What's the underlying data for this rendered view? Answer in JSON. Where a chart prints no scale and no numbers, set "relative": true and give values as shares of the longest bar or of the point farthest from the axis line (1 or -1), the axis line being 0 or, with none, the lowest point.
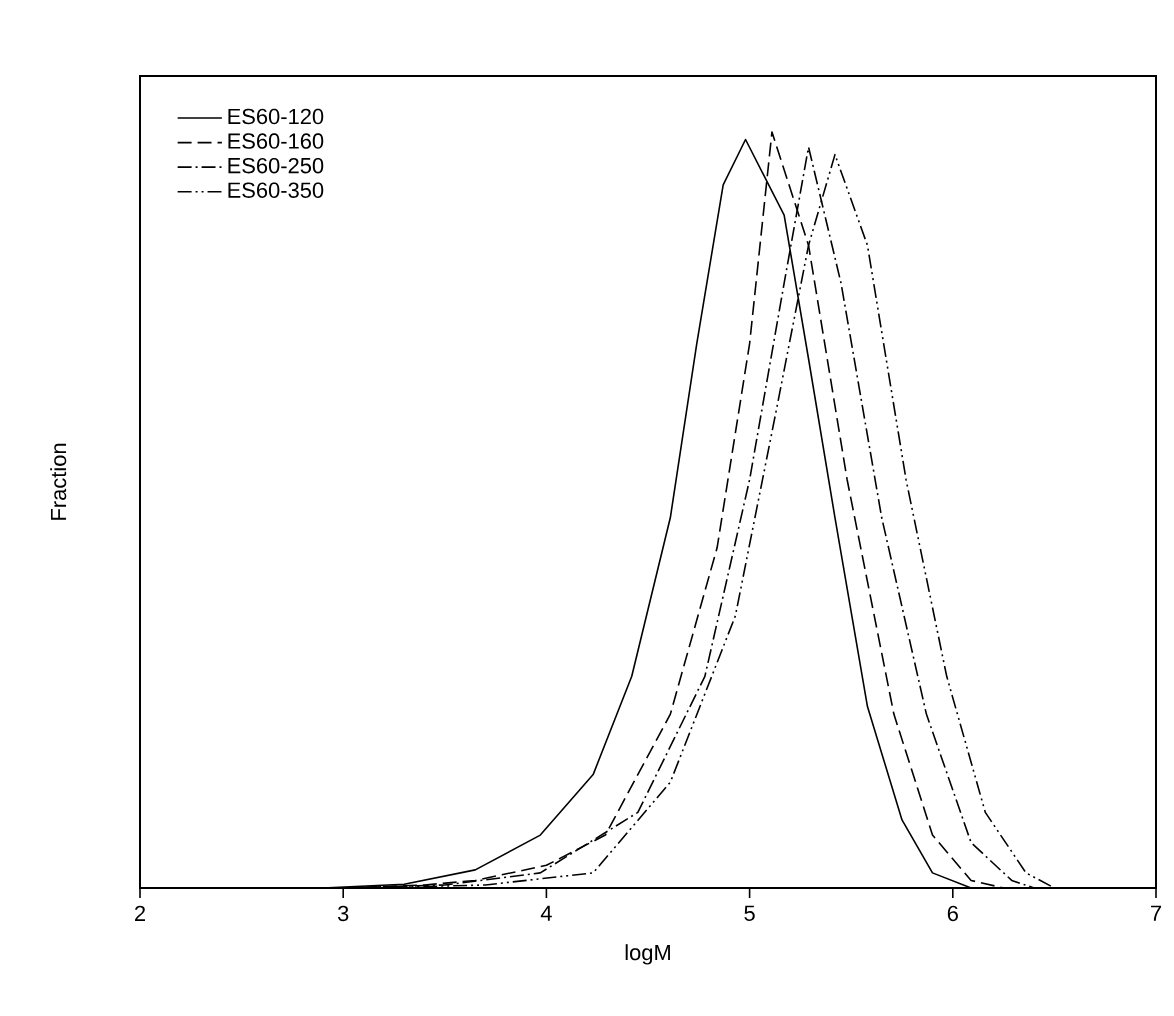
{
  "chart_data": {
    "type": "line",
    "xlabel": "logM",
    "ylabel": "Fraction",
    "relative": true,
    "xlim": [
      2,
      7
    ],
    "xticks": [
      2,
      3,
      4,
      5,
      6,
      7
    ],
    "legend": "top left",
    "grid": false,
    "marker": "none",
    "series": [
      {
        "name": "ES60-120",
        "color": "#000000",
        "line_style": "solid",
        "x": [
          2.9,
          3.3,
          3.65,
          3.97,
          4.23,
          4.42,
          4.61,
          4.74,
          4.87,
          4.98,
          5.17,
          5.29,
          5.42,
          5.58,
          5.75,
          5.9,
          6.09,
          6.3
        ],
        "values": [
          0,
          0.005,
          0.024,
          0.07,
          0.15,
          0.28,
          0.49,
          0.72,
          0.93,
          0.99,
          0.89,
          0.7,
          0.49,
          0.24,
          0.09,
          0.02,
          0,
          0
        ]
      },
      {
        "name": "ES60-160",
        "color": "#000000",
        "line_style": "dashed",
        "x": [
          3.0,
          3.4,
          3.65,
          4.0,
          4.29,
          4.61,
          4.84,
          5.0,
          5.11,
          5.29,
          5.48,
          5.71,
          5.9,
          6.09,
          6.25
        ],
        "values": [
          0,
          0.004,
          0.01,
          0.03,
          0.07,
          0.23,
          0.45,
          0.72,
          1.0,
          0.85,
          0.54,
          0.23,
          0.07,
          0.01,
          0
        ]
      },
      {
        "name": "ES60-250",
        "color": "#000000",
        "line_style": "dashdot",
        "x": [
          3.0,
          3.5,
          3.97,
          4.45,
          4.78,
          5.0,
          5.17,
          5.29,
          5.45,
          5.65,
          5.87,
          6.09,
          6.29,
          6.4
        ],
        "values": [
          0,
          0.004,
          0.02,
          0.1,
          0.28,
          0.54,
          0.8,
          0.98,
          0.8,
          0.49,
          0.23,
          0.06,
          0.01,
          0
        ]
      },
      {
        "name": "ES60-350",
        "color": "#000000",
        "line_style": "dashdotdot",
        "x": [
          3.1,
          3.7,
          4.23,
          4.61,
          4.93,
          5.13,
          5.29,
          5.42,
          5.58,
          5.77,
          5.97,
          6.16,
          6.36,
          6.5
        ],
        "values": [
          0,
          0.004,
          0.02,
          0.14,
          0.36,
          0.63,
          0.85,
          0.97,
          0.85,
          0.54,
          0.28,
          0.1,
          0.02,
          0
        ]
      }
    ]
  }
}
